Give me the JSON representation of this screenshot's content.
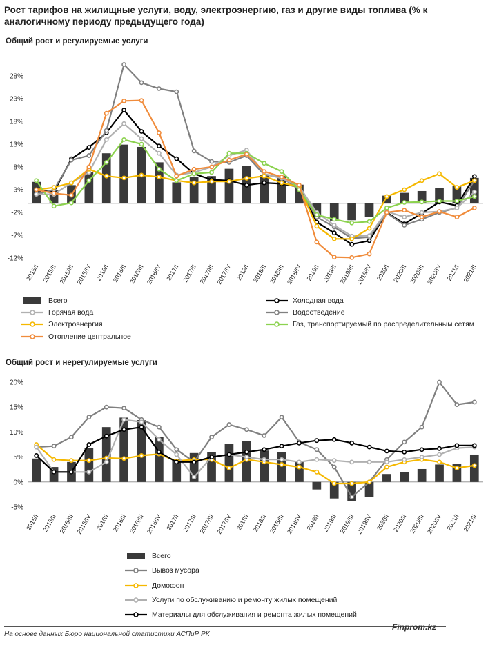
{
  "title": "Рост тарифов на жилищные услуги, воду, электроэнергию, газ и другие виды топлива (% к аналогичному периоду предыдущего года)",
  "footer": "На основе данных Бюро национальной статистики АСПиР РК",
  "brand": "Finprom.kz",
  "chart_data": [
    {
      "type": "bar",
      "title": "Общий рост  и регулируемые услуги",
      "categories": [
        "2015/I",
        "2015/II",
        "2015/III",
        "2015/IV",
        "2016/I",
        "2016/II",
        "2016/III",
        "2016/IV",
        "2017/I",
        "2017/II",
        "2017/III",
        "2017/IV",
        "2018/I",
        "2018/II",
        "2018/III",
        "2018/IV",
        "2019/I",
        "2019/II",
        "2019/III",
        "2019/IV",
        "2020/I",
        "2020/II",
        "2020/III",
        "2020/IV",
        "2021/I",
        "2021/II"
      ],
      "ylim": [
        -12,
        28
      ],
      "yticks": [
        -12,
        -7,
        -2,
        3,
        8,
        13,
        18,
        23,
        28
      ],
      "ytick_labels": [
        "-12%",
        "-7%",
        "-2%",
        "3%",
        "8%",
        "13%",
        "18%",
        "23%",
        "28%"
      ],
      "series": [
        {
          "name": "Всего",
          "kind": "bar",
          "color": "#3a3a3a",
          "values": [
            4.7,
            3.0,
            4.0,
            6.8,
            11.0,
            12.9,
            12.4,
            9.0,
            4.6,
            5.8,
            6.0,
            7.6,
            8.2,
            6.3,
            6.0,
            4.1,
            -3.1,
            -3.8,
            -3.7,
            -3.0,
            1.7,
            2.3,
            2.7,
            3.4,
            3.8,
            5.6
          ]
        },
        {
          "name": "Холодная вода",
          "kind": "line",
          "color": "#000000",
          "values": [
            3.0,
            2.5,
            9.8,
            12.3,
            15.5,
            20.5,
            15.8,
            12.6,
            9.8,
            6.5,
            5.2,
            5.0,
            4.0,
            4.5,
            4.3,
            3.6,
            -4.1,
            -6.5,
            -9.0,
            -8.2,
            -2.0,
            -4.5,
            -2.2,
            0.3,
            -0.5,
            5.9
          ]
        },
        {
          "name": "Водоотведение",
          "kind": "line",
          "color": "#808080",
          "values": [
            2.0,
            3.0,
            9.5,
            10.5,
            16.0,
            30.5,
            26.5,
            25.2,
            24.5,
            11.5,
            9.2,
            9.0,
            10.5,
            6.3,
            5.7,
            3.0,
            -3.0,
            -5.2,
            -7.7,
            -7.4,
            -2.1,
            -4.8,
            -3.5,
            -2.0,
            -1.0,
            5.0
          ]
        },
        {
          "name": "Горячая вода",
          "kind": "line",
          "color": "#b0b0b0",
          "values": [
            2.0,
            2.0,
            4.5,
            6.8,
            14.0,
            17.5,
            14.2,
            11.0,
            6.2,
            6.8,
            8.0,
            10.5,
            11.7,
            6.5,
            5.5,
            3.7,
            -2.0,
            -4.8,
            -7.2,
            -7.1,
            -1.8,
            -3.0,
            -2.0,
            -1.8,
            -1.0,
            2.5
          ]
        },
        {
          "name": "Электроэнергия",
          "kind": "line",
          "color": "#f5b800",
          "values": [
            3.0,
            3.5,
            4.5,
            7.5,
            6.0,
            5.6,
            6.2,
            5.8,
            5.0,
            4.5,
            4.8,
            4.8,
            5.5,
            6.0,
            4.5,
            3.6,
            -5.0,
            -7.8,
            -7.8,
            -5.5,
            1.5,
            3.0,
            5.0,
            6.5,
            3.5,
            5.0
          ]
        },
        {
          "name": "Газ, транспортируемый по распределительным сетям",
          "kind": "line",
          "color": "#8cd24f",
          "values": [
            5.0,
            -0.6,
            0.1,
            5.0,
            9.0,
            14.0,
            13.0,
            7.5,
            5.0,
            6.5,
            6.8,
            11.0,
            11.0,
            8.8,
            7.0,
            3.0,
            -2.5,
            -3.5,
            -4.3,
            -4.0,
            -1.0,
            0.2,
            0.3,
            0.5,
            0.5,
            1.5
          ]
        },
        {
          "name": "Отопление центральное",
          "kind": "line",
          "color": "#f08c3c",
          "values": [
            3.0,
            2.2,
            1.8,
            8.0,
            19.8,
            22.5,
            22.6,
            15.5,
            6.0,
            7.5,
            8.0,
            9.5,
            10.8,
            7.0,
            5.8,
            4.0,
            -8.5,
            -11.8,
            -11.9,
            -11.1,
            -2.0,
            -1.5,
            -3.0,
            -1.8,
            -3.0,
            -1.0
          ]
        }
      ]
    },
    {
      "type": "bar",
      "title": "Общий рост  и нерегулируемые услуги",
      "categories": [
        "2015/I",
        "2015/II",
        "2015/III",
        "2015/IV",
        "2016/I",
        "2016/II",
        "2016/III",
        "2016/IV",
        "2017/I",
        "2017/II",
        "2017/III",
        "2017/IV",
        "2018/I",
        "2018/II",
        "2018/III",
        "2018/IV",
        "2019/I",
        "2019/II",
        "2019/III",
        "2019/IV",
        "2020/I",
        "2020/II",
        "2020/III",
        "2020/IV",
        "2021/I",
        "2021/II"
      ],
      "ylim": [
        -5,
        20
      ],
      "yticks": [
        -5,
        0,
        5,
        10,
        15,
        20
      ],
      "ytick_labels": [
        "-5%",
        "0%",
        "5%",
        "10%",
        "15%",
        "20%"
      ],
      "series": [
        {
          "name": "Всего",
          "kind": "bar",
          "color": "#3a3a3a",
          "values": [
            4.7,
            3.0,
            4.0,
            6.8,
            11.0,
            12.9,
            12.4,
            9.0,
            4.6,
            5.8,
            6.0,
            7.6,
            8.2,
            6.3,
            6.0,
            4.1,
            -1.5,
            -3.3,
            -3.8,
            -3.0,
            1.6,
            2.0,
            2.6,
            3.5,
            3.7,
            5.5
          ]
        },
        {
          "name": "Вывоз мусора",
          "kind": "line",
          "color": "#808080",
          "values": [
            7.0,
            7.2,
            9.0,
            13.0,
            15.0,
            14.8,
            12.5,
            11.0,
            6.5,
            4.0,
            9.0,
            11.5,
            10.5,
            9.3,
            13.0,
            8.0,
            6.5,
            3.0,
            -3.0,
            0.0,
            4.5,
            8.0,
            11.0,
            20.0,
            15.5,
            16.0
          ]
        },
        {
          "name": "Домофон",
          "kind": "line",
          "color": "#f5b800",
          "values": [
            7.5,
            4.5,
            4.3,
            4.3,
            4.8,
            4.7,
            5.3,
            5.6,
            4.2,
            4.5,
            4.5,
            2.8,
            4.5,
            4.0,
            3.5,
            3.0,
            2.0,
            -0.3,
            -0.3,
            0.0,
            3.0,
            4.0,
            4.5,
            4.0,
            2.8,
            3.3
          ]
        },
        {
          "name": "Услуги по обслуживанию и  ремонту жилых помещений",
          "kind": "line",
          "color": "#b0b0b0",
          "values": [
            7.0,
            2.0,
            2.0,
            2.0,
            4.0,
            12.5,
            12.0,
            8.5,
            5.5,
            1.0,
            5.0,
            5.5,
            5.0,
            4.5,
            4.5,
            4.0,
            4.5,
            4.3,
            4.0,
            4.0,
            4.0,
            4.5,
            5.0,
            5.5,
            6.8,
            7.0
          ]
        },
        {
          "name": "Материалы для обслуживания и ремонта жилых помещений",
          "kind": "line",
          "color": "#000000",
          "values": [
            5.3,
            2.0,
            2.0,
            7.5,
            9.2,
            10.5,
            11.0,
            6.0,
            4.0,
            4.0,
            5.0,
            5.5,
            6.0,
            6.5,
            7.2,
            7.8,
            8.3,
            8.5,
            7.8,
            7.0,
            6.2,
            6.0,
            6.5,
            6.7,
            7.3,
            7.3
          ]
        }
      ]
    }
  ],
  "legend1": [
    {
      "label": "Всего",
      "kind": "bar",
      "color": "#3a3a3a"
    },
    {
      "label": "Холодная вода",
      "kind": "line",
      "color": "#000000"
    },
    {
      "label": "Горячая вода",
      "kind": "line",
      "color": "#b0b0b0"
    },
    {
      "label": "Водоотведение",
      "kind": "line",
      "color": "#808080"
    },
    {
      "label": "Электроэнергия",
      "kind": "line",
      "color": "#f5b800"
    },
    {
      "label": "Газ, транспортируемый по распределительным сетям",
      "kind": "line",
      "color": "#8cd24f"
    },
    {
      "label": "Отопление центральное",
      "kind": "line",
      "color": "#f08c3c"
    }
  ],
  "legend2": [
    {
      "label": "Всего",
      "kind": "bar",
      "color": "#3a3a3a"
    },
    {
      "label": "Вывоз мусора",
      "kind": "line",
      "color": "#808080"
    },
    {
      "label": "Домофон",
      "kind": "line",
      "color": "#f5b800"
    },
    {
      "label": "Услуги по обслуживанию и  ремонту жилых помещений",
      "kind": "line",
      "color": "#b0b0b0"
    },
    {
      "label": "Материалы для обслуживания и ремонта жилых помещений",
      "kind": "line",
      "color": "#000000"
    }
  ]
}
